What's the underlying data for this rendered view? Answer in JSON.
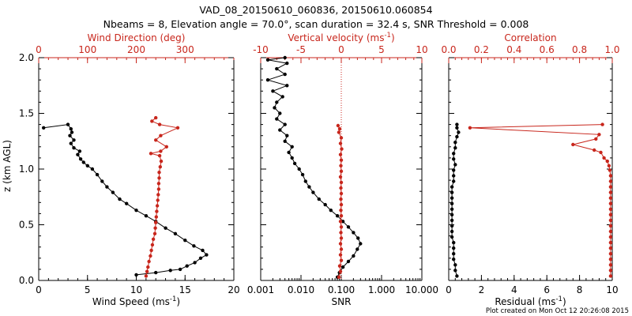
{
  "title_line1": "VAD_08_20150610_060836, 20150610.060854",
  "title_line2": "Nbeams = 8, Elevation angle = 70.0°, scan duration = 32.4 s, SNR Threshold = 0.008",
  "footer": "Plot created on Mon Oct 12 20:26:08 2015",
  "chart_data": [
    {
      "type": "line",
      "panel": "wind",
      "ylabel": "z (km AGL)",
      "ylim": [
        0,
        2
      ],
      "yticks": [
        "0.0",
        "0.5",
        "1.0",
        "1.5",
        "2.0"
      ],
      "bottom_axis": {
        "label": "Wind Speed (ms",
        "exp": "-1",
        "suffix": ")",
        "range": [
          0,
          20
        ],
        "ticks": [
          "0",
          "5",
          "10",
          "15",
          "20"
        ]
      },
      "top_axis": {
        "label": "Wind Direction (deg)",
        "range": [
          0,
          400
        ],
        "ticks": [
          "0",
          "100",
          "200",
          "300"
        ],
        "color": "#c8261c"
      },
      "series": [
        {
          "name": "Wind Speed",
          "axis": "bottom",
          "color": "#000000",
          "points": [
            [
              10.0,
              0.05
            ],
            [
              12.0,
              0.07
            ],
            [
              13.5,
              0.09
            ],
            [
              14.5,
              0.1
            ],
            [
              15.2,
              0.13
            ],
            [
              16.0,
              0.16
            ],
            [
              16.6,
              0.2
            ],
            [
              17.2,
              0.23
            ],
            [
              16.8,
              0.27
            ],
            [
              15.9,
              0.31
            ],
            [
              15.0,
              0.36
            ],
            [
              14.0,
              0.42
            ],
            [
              13.0,
              0.47
            ],
            [
              12.0,
              0.53
            ],
            [
              11.0,
              0.58
            ],
            [
              10.0,
              0.63
            ],
            [
              9.0,
              0.69
            ],
            [
              8.3,
              0.73
            ],
            [
              7.6,
              0.79
            ],
            [
              7.0,
              0.84
            ],
            [
              6.5,
              0.89
            ],
            [
              6.0,
              0.95
            ],
            [
              5.5,
              1.0
            ],
            [
              5.0,
              1.03
            ],
            [
              4.6,
              1.06
            ],
            [
              4.3,
              1.09
            ],
            [
              4.0,
              1.13
            ],
            [
              4.2,
              1.16
            ],
            [
              3.6,
              1.19
            ],
            [
              3.3,
              1.23
            ],
            [
              3.6,
              1.26
            ],
            [
              3.2,
              1.3
            ],
            [
              3.4,
              1.33
            ],
            [
              3.3,
              1.36
            ],
            [
              3.0,
              1.4
            ],
            [
              0.5,
              1.37
            ]
          ]
        },
        {
          "name": "Wind Direction",
          "axis": "top",
          "color": "#c8261c",
          "points": [
            [
              220,
              0.04
            ],
            [
              222,
              0.08
            ],
            [
              224,
              0.12
            ],
            [
              226,
              0.17
            ],
            [
              229,
              0.22
            ],
            [
              231,
              0.27
            ],
            [
              233,
              0.32
            ],
            [
              235,
              0.37
            ],
            [
              238,
              0.42
            ],
            [
              239,
              0.47
            ],
            [
              240,
              0.52
            ],
            [
              241,
              0.57
            ],
            [
              242,
              0.62
            ],
            [
              243,
              0.67
            ],
            [
              244,
              0.72
            ],
            [
              245,
              0.77
            ],
            [
              246,
              0.82
            ],
            [
              246,
              0.87
            ],
            [
              247,
              0.92
            ],
            [
              247,
              0.97
            ],
            [
              249,
              1.02
            ],
            [
              251,
              1.07
            ],
            [
              248,
              1.12
            ],
            [
              230,
              1.14
            ],
            [
              250,
              1.16
            ],
            [
              262,
              1.2
            ],
            [
              240,
              1.26
            ],
            [
              250,
              1.3
            ],
            [
              285,
              1.37
            ],
            [
              248,
              1.4
            ],
            [
              232,
              1.43
            ],
            [
              240,
              1.46
            ]
          ]
        }
      ]
    },
    {
      "type": "line",
      "panel": "snr",
      "bottom_axis": {
        "label": "SNR",
        "scale": "log",
        "range": [
          0.001,
          10
        ],
        "ticks": [
          "0.001",
          "0.010",
          "0.100",
          "1.000",
          "10.000"
        ]
      },
      "top_axis": {
        "label": "Vertical velocity (ms",
        "exp": "-1",
        "suffix": ")",
        "range": [
          -10,
          10
        ],
        "ticks": [
          "-10",
          "-5",
          "0",
          "5",
          "10"
        ],
        "color": "#c8261c"
      },
      "series": [
        {
          "name": "SNR",
          "axis": "bottom",
          "color": "#000000",
          "points": [
            [
              0.08,
              0.03
            ],
            [
              0.09,
              0.07
            ],
            [
              0.11,
              0.12
            ],
            [
              0.15,
              0.17
            ],
            [
              0.2,
              0.22
            ],
            [
              0.25,
              0.28
            ],
            [
              0.3,
              0.33
            ],
            [
              0.26,
              0.38
            ],
            [
              0.2,
              0.43
            ],
            [
              0.15,
              0.48
            ],
            [
              0.11,
              0.53
            ],
            [
              0.08,
              0.58
            ],
            [
              0.055,
              0.63
            ],
            [
              0.04,
              0.68
            ],
            [
              0.028,
              0.73
            ],
            [
              0.02,
              0.79
            ],
            [
              0.016,
              0.84
            ],
            [
              0.013,
              0.89
            ],
            [
              0.011,
              0.95
            ],
            [
              0.009,
              1.0
            ],
            [
              0.007,
              1.05
            ],
            [
              0.006,
              1.1
            ],
            [
              0.005,
              1.15
            ],
            [
              0.006,
              1.2
            ],
            [
              0.004,
              1.25
            ],
            [
              0.0045,
              1.3
            ],
            [
              0.003,
              1.35
            ],
            [
              0.004,
              1.4
            ],
            [
              0.0025,
              1.45
            ],
            [
              0.003,
              1.5
            ],
            [
              0.0022,
              1.55
            ],
            [
              0.0025,
              1.6
            ],
            [
              0.0035,
              1.65
            ],
            [
              0.002,
              1.7
            ],
            [
              0.0045,
              1.75
            ],
            [
              0.0015,
              1.8
            ],
            [
              0.004,
              1.85
            ],
            [
              0.0025,
              1.9
            ],
            [
              0.0045,
              1.95
            ],
            [
              0.0015,
              1.98
            ],
            [
              0.004,
              2.0
            ]
          ]
        },
        {
          "name": "Vertical velocity",
          "axis": "top",
          "color": "#c8261c",
          "points": [
            [
              -0.3,
              0.03
            ],
            [
              -0.1,
              0.08
            ],
            [
              -0.2,
              0.13
            ],
            [
              0.0,
              0.18
            ],
            [
              -0.1,
              0.23
            ],
            [
              0.0,
              0.28
            ],
            [
              -0.1,
              0.33
            ],
            [
              0.0,
              0.38
            ],
            [
              -0.05,
              0.43
            ],
            [
              0.0,
              0.48
            ],
            [
              -0.1,
              0.53
            ],
            [
              0.0,
              0.58
            ],
            [
              -0.05,
              0.63
            ],
            [
              0.0,
              0.68
            ],
            [
              -0.05,
              0.73
            ],
            [
              0.0,
              0.78
            ],
            [
              -0.05,
              0.83
            ],
            [
              0.0,
              0.88
            ],
            [
              -0.1,
              0.93
            ],
            [
              0.0,
              0.98
            ],
            [
              -0.05,
              1.03
            ],
            [
              0.0,
              1.08
            ],
            [
              -0.1,
              1.13
            ],
            [
              0.05,
              1.18
            ],
            [
              -0.1,
              1.23
            ],
            [
              0.0,
              1.28
            ],
            [
              -0.3,
              1.33
            ],
            [
              -0.2,
              1.36
            ],
            [
              -0.4,
              1.39
            ]
          ]
        }
      ],
      "refline": {
        "axis": "top",
        "value": 0
      }
    },
    {
      "type": "line",
      "panel": "correlation",
      "bottom_axis": {
        "label": "Residual (ms",
        "exp": "-1",
        "suffix": ")",
        "range": [
          0,
          10
        ],
        "ticks": [
          "0",
          "2",
          "4",
          "6",
          "8",
          "10"
        ]
      },
      "top_axis": {
        "label": "Correlation",
        "range": [
          0,
          1
        ],
        "ticks": [
          "0.0",
          "0.2",
          "0.4",
          "0.6",
          "0.8",
          "1.0"
        ],
        "color": "#c8261c"
      },
      "series": [
        {
          "name": "Residual",
          "axis": "bottom",
          "color": "#000000",
          "points": [
            [
              0.5,
              0.04
            ],
            [
              0.4,
              0.09
            ],
            [
              0.4,
              0.14
            ],
            [
              0.3,
              0.19
            ],
            [
              0.3,
              0.24
            ],
            [
              0.3,
              0.29
            ],
            [
              0.3,
              0.34
            ],
            [
              0.2,
              0.39
            ],
            [
              0.2,
              0.44
            ],
            [
              0.2,
              0.49
            ],
            [
              0.2,
              0.54
            ],
            [
              0.2,
              0.59
            ],
            [
              0.2,
              0.64
            ],
            [
              0.2,
              0.69
            ],
            [
              0.2,
              0.74
            ],
            [
              0.2,
              0.79
            ],
            [
              0.2,
              0.84
            ],
            [
              0.3,
              0.89
            ],
            [
              0.3,
              0.94
            ],
            [
              0.3,
              0.99
            ],
            [
              0.4,
              1.04
            ],
            [
              0.3,
              1.09
            ],
            [
              0.3,
              1.14
            ],
            [
              0.4,
              1.19
            ],
            [
              0.4,
              1.24
            ],
            [
              0.5,
              1.29
            ],
            [
              0.6,
              1.33
            ],
            [
              0.5,
              1.37
            ],
            [
              0.5,
              1.4
            ]
          ]
        },
        {
          "name": "Correlation",
          "axis": "top",
          "color": "#c8261c",
          "points": [
            [
              0.99,
              0.04
            ],
            [
              0.99,
              0.09
            ],
            [
              0.99,
              0.14
            ],
            [
              0.99,
              0.19
            ],
            [
              0.99,
              0.24
            ],
            [
              0.99,
              0.29
            ],
            [
              0.99,
              0.34
            ],
            [
              0.99,
              0.39
            ],
            [
              0.99,
              0.44
            ],
            [
              0.99,
              0.49
            ],
            [
              0.99,
              0.54
            ],
            [
              0.99,
              0.59
            ],
            [
              0.99,
              0.64
            ],
            [
              0.99,
              0.69
            ],
            [
              0.99,
              0.74
            ],
            [
              0.99,
              0.79
            ],
            [
              0.99,
              0.84
            ],
            [
              0.99,
              0.89
            ],
            [
              0.99,
              0.94
            ],
            [
              0.985,
              0.99
            ],
            [
              0.98,
              1.03
            ],
            [
              0.97,
              1.07
            ],
            [
              0.95,
              1.1
            ],
            [
              0.93,
              1.15
            ],
            [
              0.89,
              1.17
            ],
            [
              0.76,
              1.22
            ],
            [
              0.9,
              1.27
            ],
            [
              0.92,
              1.31
            ],
            [
              0.13,
              1.37
            ],
            [
              0.94,
              1.4
            ]
          ]
        }
      ]
    }
  ]
}
